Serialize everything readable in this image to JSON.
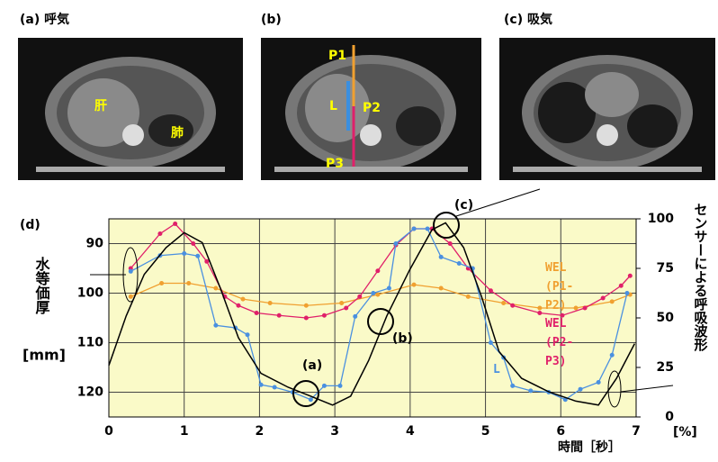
{
  "panels": {
    "a": "(a) 呼気",
    "b": "(b)",
    "c": "(c) 吸気",
    "d": "(d)",
    "a_labels": [
      "肝",
      "肺"
    ],
    "b_labels": [
      "P1",
      "L",
      "P2",
      "P3"
    ]
  },
  "chart_data": {
    "type": "line",
    "xlabel": "時間［秒］",
    "ylabel": "水等価厚",
    "yunit": "[mm]",
    "y2label": "センサーによる呼吸波形",
    "y2unit": "[%]",
    "annotations": [
      "(a)",
      "(b)",
      "(c)"
    ],
    "xlim": [
      0,
      7
    ],
    "xticks": [
      0,
      1,
      2,
      3,
      4,
      5,
      6,
      7
    ],
    "ylim": [
      125,
      85
    ],
    "yticks": [
      90,
      100,
      110,
      120
    ],
    "y2lim": [
      0,
      100
    ],
    "y2ticks": [
      0,
      25,
      50,
      75,
      100
    ],
    "grid": true,
    "background": "#fafac8",
    "series": [
      {
        "name": "WEL (P1-P2)",
        "color": "#f0a030",
        "axis": "y",
        "x": [
          0.29,
          0.7,
          1.06,
          1.42,
          1.78,
          2.14,
          2.62,
          3.09,
          3.57,
          4.05,
          4.41,
          4.77,
          5.24,
          5.72,
          6.2,
          6.68,
          6.92
        ],
        "values": [
          100.7,
          98,
          98,
          99,
          101.2,
          102,
          102.5,
          102,
          100.3,
          98.3,
          99,
          100.7,
          102,
          103,
          103,
          101.7,
          100.3
        ]
      },
      {
        "name": "WEL (P2-P3)",
        "color": "#e0206a",
        "axis": "y",
        "x": [
          0.29,
          0.68,
          0.88,
          1.12,
          1.3,
          1.54,
          1.72,
          1.96,
          2.26,
          2.62,
          2.86,
          3.15,
          3.33,
          3.57,
          3.81,
          4.05,
          4.29,
          4.53,
          4.77,
          5.07,
          5.36,
          5.72,
          6.02,
          6.32,
          6.56,
          6.8,
          6.92
        ],
        "values": [
          95,
          88,
          86,
          90,
          93.6,
          100.7,
          102.5,
          104,
          104.5,
          105,
          104.5,
          103,
          100.7,
          95.5,
          90.3,
          87,
          87,
          90,
          95,
          99.5,
          102.5,
          104,
          104.5,
          103,
          101,
          98.5,
          96.5
        ]
      },
      {
        "name": "L",
        "color": "#4a90e0",
        "axis": "y",
        "x": [
          0.29,
          0.68,
          1.0,
          1.18,
          1.42,
          1.68,
          1.84,
          2.02,
          2.2,
          2.44,
          2.68,
          2.86,
          3.07,
          3.27,
          3.51,
          3.72,
          3.81,
          4.05,
          4.23,
          4.41,
          4.65,
          4.83,
          5.07,
          5.24,
          5.36,
          5.6,
          5.84,
          6.06,
          6.26,
          6.5,
          6.68,
          6.88
        ],
        "values": [
          95.6,
          92.4,
          92,
          92.5,
          106.5,
          107,
          108.4,
          118.5,
          119,
          120,
          121.5,
          118.7,
          118.7,
          104.7,
          100,
          99,
          90,
          87,
          87,
          92.7,
          94,
          95,
          110,
          113,
          118.7,
          119.7,
          120,
          121.5,
          119.4,
          118,
          112.5,
          100
        ]
      },
      {
        "color": "#000000",
        "axis": "y2",
        "x": [
          0,
          0.23,
          0.47,
          0.76,
          1.0,
          1.24,
          1.48,
          1.72,
          2.02,
          2.38,
          2.68,
          2.97,
          3.21,
          3.45,
          3.69,
          3.99,
          4.29,
          4.47,
          4.71,
          4.95,
          5.18,
          5.48,
          5.84,
          6.2,
          6.5,
          6.74,
          6.98
        ],
        "values": [
          26,
          51,
          72,
          85.5,
          93,
          88,
          65,
          40,
          22,
          15,
          10.5,
          6,
          10.5,
          28.6,
          51,
          74,
          94.5,
          98,
          85.5,
          60.5,
          33,
          19.5,
          12.7,
          8,
          6,
          19.5,
          37
        ]
      }
    ]
  }
}
